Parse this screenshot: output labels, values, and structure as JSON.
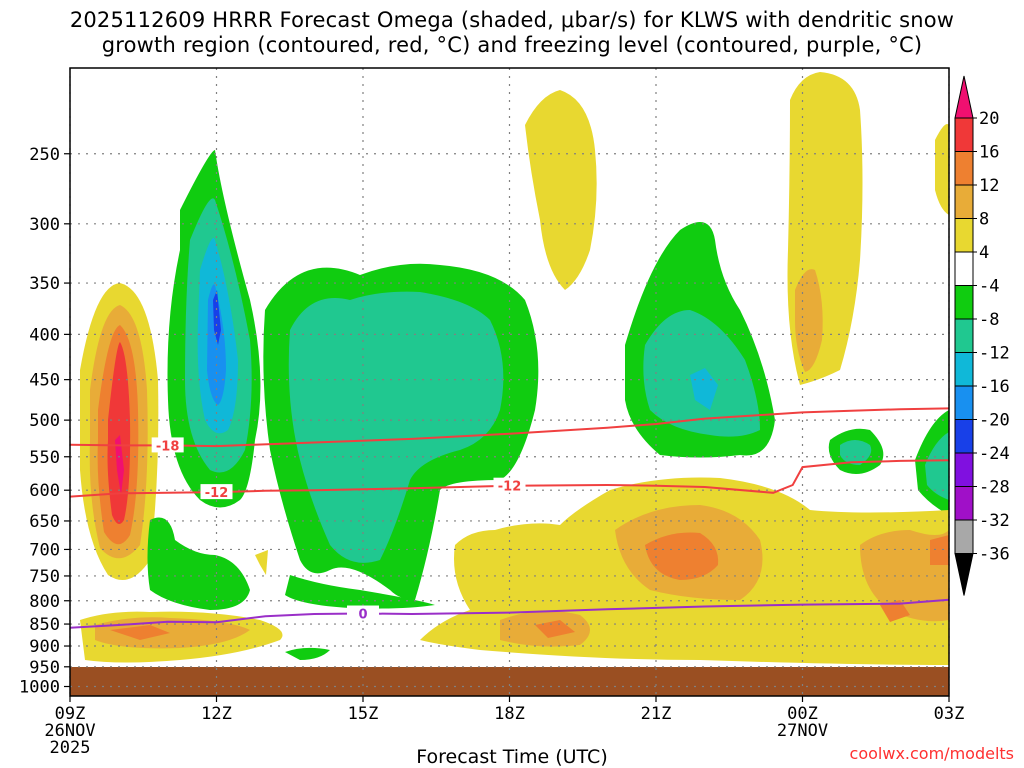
{
  "title_line1": "2025112609 HRRR Forecast Omega (shaded, μbar/s) for KLWS with dendritic snow",
  "title_line2": "growth region (contoured, red, °C) and freezing level (contoured, purple, °C)",
  "xlabel": "Forecast Time (UTC)",
  "credit": "coolwx.com/modelts",
  "colors": {
    "ground": "#9a4f22",
    "contour_red": "#f04040",
    "contour_purple": "#9a2fc8",
    "grid": "#808080"
  },
  "chart_data": {
    "type": "heatmap",
    "title": "2025112609 HRRR Forecast Omega (shaded, μbar/s) for KLWS with dendritic snow growth region (contoured, red, °C) and freezing level (contoured, purple, °C)",
    "xlabel": "Forecast Time (UTC)",
    "ylabel": "",
    "x_ticks": [
      {
        "label": "09Z",
        "sub": [
          "26NOV",
          "2025"
        ],
        "hours": 0
      },
      {
        "label": "12Z",
        "hours": 3
      },
      {
        "label": "15Z",
        "hours": 6
      },
      {
        "label": "18Z",
        "hours": 9
      },
      {
        "label": "21Z",
        "hours": 12
      },
      {
        "label": "00Z",
        "sub": [
          "27NOV"
        ],
        "hours": 15
      },
      {
        "label": "03Z",
        "hours": 18
      }
    ],
    "xlim": [
      0,
      18
    ],
    "y_ticks": [
      250,
      300,
      350,
      400,
      450,
      500,
      550,
      600,
      650,
      700,
      750,
      800,
      850,
      900,
      950,
      1000
    ],
    "ylim": [
      200,
      1025
    ],
    "y_scale": "log",
    "y_reversed": true,
    "grid": true,
    "colorbar": {
      "levels": [
        20,
        16,
        12,
        8,
        4,
        -4,
        -8,
        -12,
        -16,
        -20,
        -24,
        -28,
        -32,
        -36
      ],
      "units": "μbar/s",
      "colors": [
        "#f01070",
        "#f03838",
        "#ee8030",
        "#e8ac38",
        "#e8d830",
        "#ffffff",
        "#10cc10",
        "#20c890",
        "#10b8d8",
        "#1890f0",
        "#1840e8",
        "#8010e0",
        "#a010c8",
        "#a8a8a8",
        "#000000"
      ]
    },
    "contours": [
      {
        "name": "-18",
        "color": "red",
        "label": "-18",
        "x": [
          0,
          1,
          2,
          3,
          5,
          7,
          9,
          11,
          12,
          13,
          15,
          16,
          17,
          18
        ],
        "y": [
          533,
          534,
          534,
          535,
          530,
          525,
          518,
          510,
          505,
          498,
          490,
          488,
          486,
          485
        ]
      },
      {
        "name": "-12",
        "color": "red",
        "label": "-12",
        "x": [
          0,
          1,
          2,
          3,
          4,
          5,
          7,
          9,
          11,
          12,
          13,
          14.4,
          14.8,
          15,
          16,
          17,
          18
        ],
        "y": [
          610,
          605,
          604,
          603,
          601,
          600,
          597,
          593,
          592,
          593,
          595,
          604,
          592,
          565,
          558,
          556,
          555
        ]
      },
      {
        "name": "0",
        "color": "purple",
        "label": "0",
        "x": [
          0,
          1,
          2,
          3,
          4,
          5,
          6,
          7,
          9,
          11,
          13,
          15,
          17,
          18
        ],
        "y": [
          858,
          852,
          845,
          846,
          833,
          828,
          827,
          828,
          825,
          818,
          812,
          808,
          806,
          798
        ]
      }
    ],
    "omega_regions": [
      {
        "level": "12",
        "x": [
          0.9,
          1.2,
          1.3,
          1.2,
          0.9
        ],
        "y": [
          400,
          420,
          560,
          680,
          700
        ]
      },
      {
        "level": "16",
        "x": [
          1.0,
          1.1,
          1.15,
          1.1,
          1.0
        ],
        "y": [
          430,
          470,
          560,
          640,
          660
        ]
      },
      {
        "level": "20",
        "x": [
          1.05,
          1.1
        ],
        "y": [
          540,
          600
        ]
      },
      {
        "level": "-16",
        "x": [
          3.0,
          3.1
        ],
        "y": [
          380,
          420
        ]
      },
      {
        "level": "-24",
        "x": [
          3.0,
          3.1
        ],
        "y": [
          370,
          390
        ]
      },
      {
        "level": "12",
        "x": [
          12.5,
          13.0,
          13.5
        ],
        "y": [
          700,
          720,
          740
        ]
      },
      {
        "level": "12",
        "x": [
          14.8,
          15.1
        ],
        "y": [
          390,
          420
        ]
      }
    ]
  }
}
